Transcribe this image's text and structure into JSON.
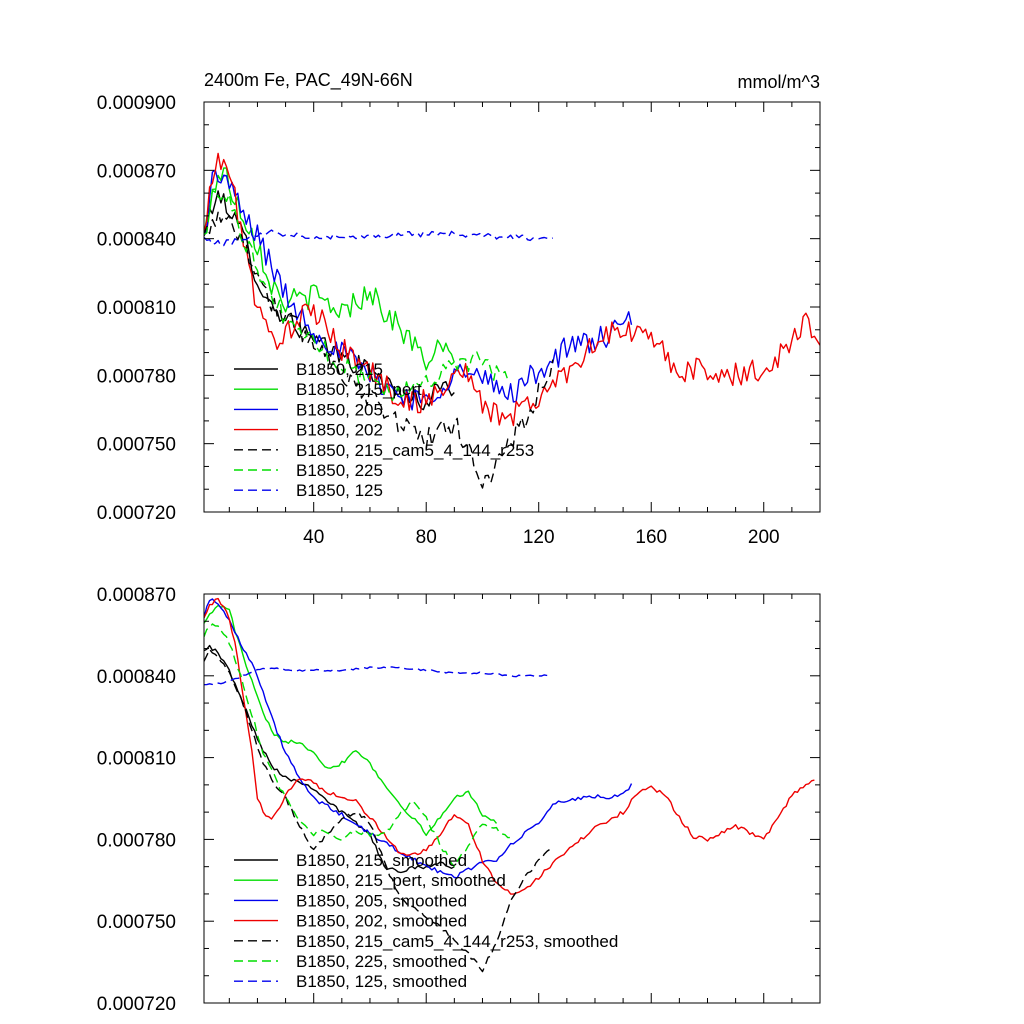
{
  "chart_data": [
    {
      "type": "line",
      "title_left": "2400m Fe, PAC_49N-66N",
      "title_right": "mmol/m^3",
      "xlabel": "",
      "ylabel": "",
      "xlim": [
        1,
        220
      ],
      "ylim": [
        0.00072,
        0.0009
      ],
      "yticks": [
        0.00072,
        0.00075,
        0.00078,
        0.00081,
        0.00084,
        0.00087,
        0.0009
      ],
      "ytick_labels": [
        "0.000720",
        "0.000750",
        "0.000780",
        "0.000810",
        "0.000840",
        "0.000870",
        "0.000900"
      ],
      "xticks": [
        40,
        80,
        120,
        160,
        200
      ],
      "xtick_labels": [
        "40",
        "80",
        "120",
        "160",
        "200"
      ],
      "legend_position": "bottom-left",
      "series": [
        {
          "name": "B1850, 215",
          "color": "#000000",
          "dash": "solid",
          "noise": 4.5e-06,
          "x": [
            1,
            4,
            8,
            12,
            16,
            20,
            25,
            30,
            40,
            50,
            60,
            70,
            80,
            85,
            90
          ],
          "y": [
            0.00084,
            0.000855,
            0.000858,
            0.000848,
            0.000838,
            0.000822,
            0.00081,
            0.000806,
            0.000795,
            0.000788,
            0.000782,
            0.000772,
            0.000768,
            0.000776,
            0.000772
          ]
        },
        {
          "name": "B1850, 215_pert",
          "color": "#00dd00",
          "dash": "solid",
          "noise": 5.5e-06,
          "x": [
            1,
            4,
            8,
            12,
            16,
            20,
            25,
            30,
            40,
            50,
            55,
            60,
            65,
            70,
            80,
            85,
            90
          ],
          "y": [
            0.00084,
            0.000862,
            0.00087,
            0.000858,
            0.000848,
            0.000838,
            0.00082,
            0.000812,
            0.000815,
            0.000808,
            0.000812,
            0.000818,
            0.000808,
            0.000802,
            0.000786,
            0.000792,
            0.000785
          ]
        },
        {
          "name": "B1850, 205",
          "color": "#0000ee",
          "dash": "solid",
          "noise": 5.5e-06,
          "x": [
            1,
            4,
            8,
            12,
            16,
            20,
            25,
            30,
            40,
            50,
            60,
            70,
            80,
            90,
            100,
            110,
            120,
            130,
            140,
            145,
            150,
            153
          ],
          "y": [
            0.00084,
            0.000866,
            0.000868,
            0.000858,
            0.000848,
            0.000842,
            0.000828,
            0.000815,
            0.0008,
            0.00079,
            0.00078,
            0.000772,
            0.000768,
            0.000782,
            0.000778,
            0.000772,
            0.000782,
            0.000792,
            0.000795,
            0.000798,
            0.0008,
            0.000806
          ]
        },
        {
          "name": "B1850, 202",
          "color": "#ee0000",
          "dash": "solid",
          "noise": 5.5e-06,
          "x": [
            1,
            4,
            8,
            12,
            16,
            20,
            25,
            30,
            35,
            40,
            50,
            60,
            70,
            80,
            90,
            95,
            100,
            110,
            120,
            130,
            140,
            150,
            160,
            170,
            180,
            190,
            200,
            210,
            215,
            220
          ],
          "y": [
            0.00084,
            0.000868,
            0.000876,
            0.000858,
            0.000835,
            0.000808,
            0.000796,
            0.000798,
            0.000805,
            0.000808,
            0.000792,
            0.000782,
            0.00077,
            0.000768,
            0.00078,
            0.000782,
            0.000765,
            0.000762,
            0.00077,
            0.000782,
            0.000795,
            0.0008,
            0.000796,
            0.000782,
            0.000782,
            0.00078,
            0.000782,
            0.000795,
            0.000805,
            0.000795
          ]
        },
        {
          "name": "B1850, 215_cam5_4_144_r253",
          "color": "#000000",
          "dash": "dashed",
          "noise": 5e-06,
          "x": [
            1,
            4,
            8,
            12,
            16,
            20,
            25,
            30,
            40,
            50,
            60,
            70,
            80,
            90,
            95,
            100,
            103,
            110,
            115,
            120,
            125
          ],
          "y": [
            0.00084,
            0.000848,
            0.000852,
            0.000845,
            0.000835,
            0.000825,
            0.000812,
            0.000805,
            0.000795,
            0.000782,
            0.00077,
            0.00076,
            0.000752,
            0.000758,
            0.00075,
            0.000732,
            0.000735,
            0.000752,
            0.00076,
            0.000772,
            0.000782
          ]
        },
        {
          "name": "B1850, 225",
          "color": "#00dd00",
          "dash": "dashed",
          "noise": 4.5e-06,
          "x": [
            1,
            4,
            8,
            12,
            16,
            20,
            25,
            30,
            40,
            50,
            60,
            70,
            80,
            90,
            100,
            105,
            110
          ],
          "y": [
            0.00084,
            0.000858,
            0.000862,
            0.000852,
            0.000838,
            0.000828,
            0.000815,
            0.000805,
            0.000795,
            0.000785,
            0.000778,
            0.000772,
            0.000778,
            0.000785,
            0.000786,
            0.00078,
            0.000783
          ]
        },
        {
          "name": "B1850, 125",
          "color": "#0000ee",
          "dash": "dashed",
          "noise": 1.2e-06,
          "x": [
            1,
            4,
            8,
            12,
            16,
            20,
            25,
            30,
            40,
            50,
            60,
            70,
            80,
            90,
            100,
            110,
            120,
            125
          ],
          "y": [
            0.00084,
            0.000838,
            0.000838,
            0.000839,
            0.00084,
            0.000842,
            0.000843,
            0.000842,
            0.000841,
            0.000841,
            0.000841,
            0.000842,
            0.000842,
            0.000842,
            0.000841,
            0.000841,
            0.00084,
            0.00084
          ]
        }
      ]
    },
    {
      "type": "line",
      "title_left": "",
      "title_right": "",
      "xlabel": "",
      "ylabel": "",
      "xlim": [
        1,
        220
      ],
      "ylim": [
        0.00072,
        0.00087
      ],
      "yticks": [
        0.00072,
        0.00075,
        0.00078,
        0.00081,
        0.00084,
        0.00087
      ],
      "ytick_labels": [
        "0.000720",
        "0.000750",
        "0.000780",
        "0.000810",
        "0.000840",
        "0.000870"
      ],
      "xticks": [
        40,
        80,
        120,
        160,
        200
      ],
      "xtick_labels": [],
      "legend_position": "bottom-left",
      "series": [
        {
          "name": "B1850, 215, smoothed",
          "color": "#000000",
          "dash": "solid",
          "noise": 8e-07,
          "x": [
            1,
            3,
            6,
            10,
            14,
            18,
            22,
            26,
            30,
            35,
            40,
            45,
            50,
            55,
            60,
            65,
            70,
            75,
            80,
            85,
            90
          ],
          "y": [
            0.00085,
            0.000851,
            0.000848,
            0.000842,
            0.000832,
            0.000822,
            0.000813,
            0.000806,
            0.000803,
            0.000801,
            0.000799,
            0.000794,
            0.00079,
            0.000786,
            0.000782,
            0.00077,
            0.000768,
            0.00077,
            0.00077,
            0.000771,
            0.00077
          ]
        },
        {
          "name": "B1850, 215_pert, smoothed",
          "color": "#00dd00",
          "dash": "solid",
          "noise": 8e-07,
          "x": [
            1,
            3,
            6,
            10,
            14,
            18,
            22,
            26,
            30,
            35,
            40,
            45,
            50,
            55,
            60,
            65,
            70,
            75,
            80,
            85,
            90,
            95,
            100,
            105
          ],
          "y": [
            0.00086,
            0.000862,
            0.000866,
            0.000864,
            0.00085,
            0.000838,
            0.000826,
            0.000818,
            0.000816,
            0.000816,
            0.000812,
            0.000806,
            0.000808,
            0.000813,
            0.000808,
            0.0008,
            0.000794,
            0.000788,
            0.000782,
            0.000788,
            0.000795,
            0.000798,
            0.000789,
            0.000786
          ]
        },
        {
          "name": "B1850, 205, smoothed",
          "color": "#0000ee",
          "dash": "solid",
          "noise": 8e-07,
          "x": [
            1,
            3,
            6,
            10,
            14,
            18,
            22,
            26,
            30,
            35,
            40,
            50,
            60,
            70,
            80,
            90,
            100,
            105,
            110,
            120,
            125,
            130,
            135,
            140,
            145,
            150,
            153
          ],
          "y": [
            0.000862,
            0.000868,
            0.000867,
            0.00086,
            0.000852,
            0.000845,
            0.000834,
            0.000822,
            0.000812,
            0.000802,
            0.000795,
            0.000789,
            0.000782,
            0.000776,
            0.00077,
            0.000766,
            0.000772,
            0.000772,
            0.000778,
            0.000786,
            0.000793,
            0.000794,
            0.000795,
            0.000796,
            0.000795,
            0.000797,
            0.0008
          ]
        },
        {
          "name": "B1850, 202, smoothed",
          "color": "#ee0000",
          "dash": "solid",
          "noise": 8e-07,
          "x": [
            1,
            3,
            6,
            9,
            12,
            15,
            18,
            20,
            22,
            25,
            28,
            30,
            35,
            40,
            45,
            50,
            55,
            60,
            65,
            70,
            75,
            80,
            85,
            90,
            95,
            100,
            105,
            110,
            115,
            120,
            130,
            140,
            150,
            155,
            160,
            165,
            170,
            175,
            180,
            190,
            200,
            205,
            210,
            215,
            218
          ],
          "y": [
            0.000862,
            0.000866,
            0.000868,
            0.000864,
            0.000852,
            0.000832,
            0.000812,
            0.000795,
            0.00079,
            0.000788,
            0.000792,
            0.000797,
            0.000802,
            0.000801,
            0.000797,
            0.000796,
            0.000794,
            0.000788,
            0.000782,
            0.000776,
            0.000774,
            0.000776,
            0.000782,
            0.000789,
            0.000786,
            0.000772,
            0.000764,
            0.00076,
            0.000762,
            0.000766,
            0.000776,
            0.000784,
            0.00079,
            0.000797,
            0.000799,
            0.000796,
            0.000788,
            0.000781,
            0.00078,
            0.000785,
            0.00078,
            0.000788,
            0.000796,
            0.0008,
            0.000802
          ]
        },
        {
          "name": "B1850, 215_cam5_4_144_r253, smoothed",
          "color": "#000000",
          "dash": "dashed",
          "noise": 8e-07,
          "x": [
            1,
            3,
            6,
            10,
            14,
            18,
            22,
            26,
            30,
            35,
            40,
            45,
            50,
            55,
            60,
            65,
            70,
            75,
            80,
            85,
            90,
            95,
            100,
            105,
            110,
            115,
            120,
            125
          ],
          "y": [
            0.000846,
            0.000849,
            0.000847,
            0.000842,
            0.000832,
            0.00082,
            0.000808,
            0.0008,
            0.000795,
            0.000785,
            0.000776,
            0.000782,
            0.000788,
            0.00079,
            0.000786,
            0.000772,
            0.00076,
            0.000755,
            0.000752,
            0.000748,
            0.000743,
            0.000738,
            0.000732,
            0.000742,
            0.000758,
            0.000766,
            0.000772,
            0.000778
          ]
        },
        {
          "name": "B1850, 225, smoothed",
          "color": "#00dd00",
          "dash": "dashed",
          "noise": 8e-07,
          "x": [
            1,
            3,
            6,
            10,
            14,
            18,
            22,
            26,
            30,
            35,
            40,
            45,
            50,
            55,
            60,
            65,
            70,
            75,
            80,
            85,
            90,
            95,
            100,
            105,
            110
          ],
          "y": [
            0.000855,
            0.000858,
            0.000859,
            0.000852,
            0.00084,
            0.000826,
            0.000812,
            0.000803,
            0.000795,
            0.000786,
            0.000782,
            0.000783,
            0.00078,
            0.000783,
            0.000782,
            0.000782,
            0.000788,
            0.000794,
            0.000788,
            0.000778,
            0.00077,
            0.000778,
            0.000786,
            0.000784,
            0.00078
          ]
        },
        {
          "name": "B1850, 125, smoothed",
          "color": "#0000ee",
          "dash": "dashed",
          "noise": 3.5e-07,
          "x": [
            1,
            5,
            10,
            15,
            20,
            25,
            30,
            40,
            50,
            60,
            70,
            80,
            90,
            100,
            110,
            120,
            123
          ],
          "y": [
            0.000837,
            0.000837,
            0.000838,
            0.00084,
            0.000842,
            0.000843,
            0.000842,
            0.000842,
            0.000842,
            0.000843,
            0.000843,
            0.000842,
            0.000841,
            0.000841,
            0.00084,
            0.00084,
            0.00084
          ]
        }
      ]
    }
  ]
}
